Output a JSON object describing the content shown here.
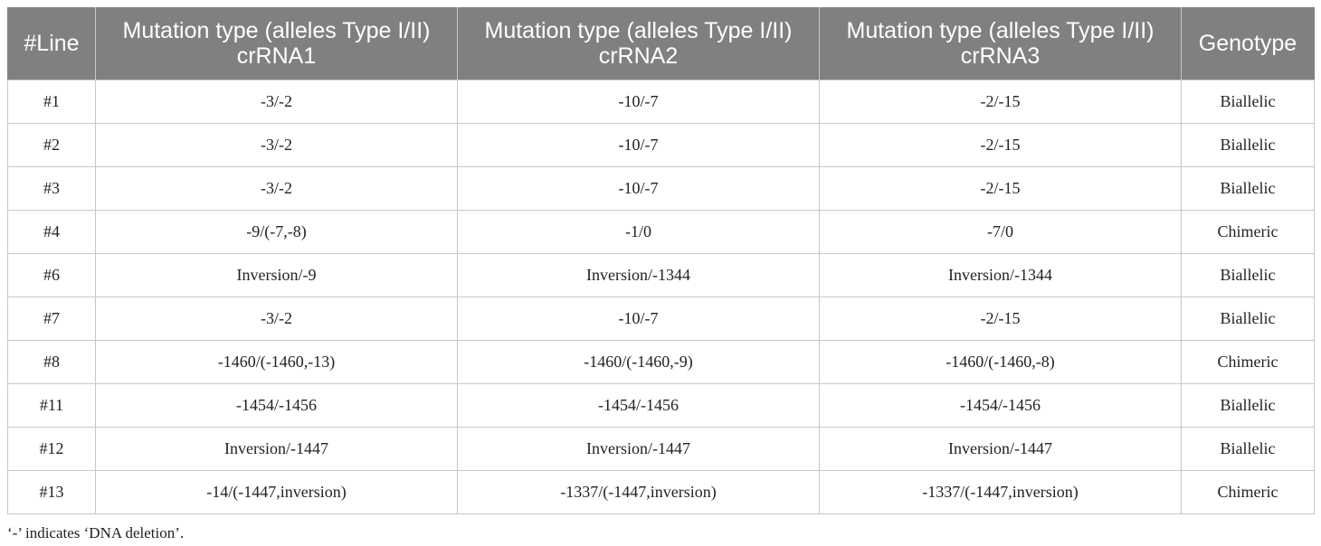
{
  "table": {
    "headers": [
      {
        "lines": [
          "#Line"
        ]
      },
      {
        "lines": [
          "Mutation type (alleles Type I/II)",
          "crRNA1"
        ]
      },
      {
        "lines": [
          "Mutation type (alleles Type I/II)",
          "crRNA2"
        ]
      },
      {
        "lines": [
          "Mutation type (alleles Type I/II)",
          "crRNA3"
        ]
      },
      {
        "lines": [
          "Genotype"
        ]
      }
    ],
    "rows": [
      [
        "#1",
        "-3/-2",
        "-10/-7",
        "-2/-15",
        "Biallelic"
      ],
      [
        "#2",
        "-3/-2",
        "-10/-7",
        "-2/-15",
        "Biallelic"
      ],
      [
        "#3",
        "-3/-2",
        "-10/-7",
        "-2/-15",
        "Biallelic"
      ],
      [
        "#4",
        "-9/(-7,-8)",
        "-1/0",
        "-7/0",
        "Chimeric"
      ],
      [
        "#6",
        "Inversion/-9",
        "Inversion/-1344",
        "Inversion/-1344",
        "Biallelic"
      ],
      [
        "#7",
        "-3/-2",
        "-10/-7",
        "-2/-15",
        "Biallelic"
      ],
      [
        "#8",
        "-1460/(-1460,-13)",
        "-1460/(-1460,-9)",
        "-1460/(-1460,-8)",
        "Chimeric"
      ],
      [
        "#11",
        "-1454/-1456",
        "-1454/-1456",
        "-1454/-1456",
        "Biallelic"
      ],
      [
        "#12",
        "Inversion/-1447",
        "Inversion/-1447",
        "Inversion/-1447",
        "Biallelic"
      ],
      [
        "#13",
        "-14/(-1447,inversion)",
        "-1337/(-1447,inversion)",
        "-1337/(-1447,inversion)",
        "Chimeric"
      ]
    ]
  },
  "footnote": "‘-’ indicates ‘DNA deletion’.",
  "colors": {
    "header_bg": "#808080",
    "header_text": "#ffffff",
    "grid": "#c8c8c8"
  }
}
